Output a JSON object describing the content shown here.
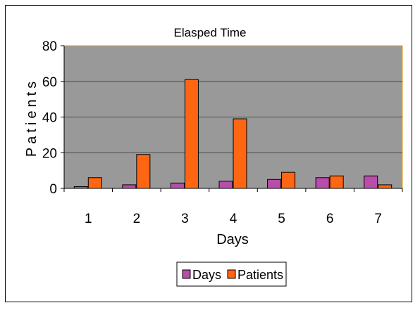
{
  "chart_data": {
    "type": "bar",
    "title": "Elasped Time",
    "xlabel": "Days",
    "ylabel": "Patients",
    "categories": [
      "1",
      "2",
      "3",
      "4",
      "5",
      "6",
      "7"
    ],
    "series": [
      {
        "name": "Days",
        "values": [
          1,
          2,
          3,
          4,
          5,
          6,
          7
        ],
        "color": "#b94dac"
      },
      {
        "name": "Patients",
        "values": [
          6,
          19,
          61,
          39,
          9,
          7,
          2
        ],
        "color": "#ff6611"
      }
    ],
    "ylim": [
      0,
      80
    ],
    "yticks": [
      0,
      20,
      40,
      60,
      80
    ],
    "grid": true,
    "plot_background": "#999999",
    "plot_border_color": "#e8a317",
    "legend_position": "bottom"
  }
}
